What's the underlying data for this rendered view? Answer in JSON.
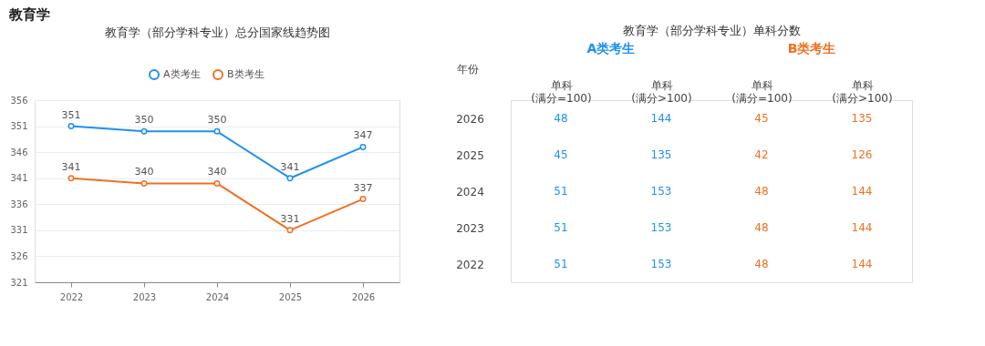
{
  "chart_data": [
    {
      "type": "line",
      "title": "教育学（部分学科专业）总分国家线趋势图",
      "annotations": [
        "教育学"
      ],
      "categories": [
        "2022",
        "2023",
        "2024",
        "2025",
        "2026"
      ],
      "series": [
        {
          "name": "A类考生",
          "color": "#1e90f0",
          "values": [
            351,
            350,
            350,
            341,
            347
          ]
        },
        {
          "name": "B类考生",
          "color": "#f07020",
          "values": [
            341,
            340,
            340,
            331,
            337
          ]
        }
      ],
      "ylim": [
        321,
        356
      ],
      "yticks": [
        321,
        326,
        331,
        336,
        341,
        346,
        351,
        356
      ],
      "grid": "y",
      "legend": "top",
      "marker": "circle",
      "line_style": "solid",
      "data_labels": true
    },
    {
      "type": "heatmap",
      "title": "教育学（部分学科专业）单科分数",
      "ylabel": "年份",
      "categories": [
        "单科\n(满分=100)",
        "单科\n(满分>100)",
        "单科\n(满分=100)",
        "单科\n(满分>100)"
      ],
      "y_categories": [
        "2026",
        "2025",
        "2024",
        "2023",
        "2022"
      ],
      "annotations": [
        "A类考生",
        "B类考生"
      ],
      "colors": [
        "#1e90f0",
        "#1e90f0",
        "#f07020",
        "#f07020"
      ],
      "cells": [
        [
          48,
          144,
          45,
          135
        ],
        [
          45,
          135,
          42,
          126
        ],
        [
          51,
          153,
          48,
          144
        ],
        [
          51,
          153,
          48,
          144
        ],
        [
          51,
          153,
          48,
          144
        ]
      ],
      "data_labels": true
    }
  ]
}
